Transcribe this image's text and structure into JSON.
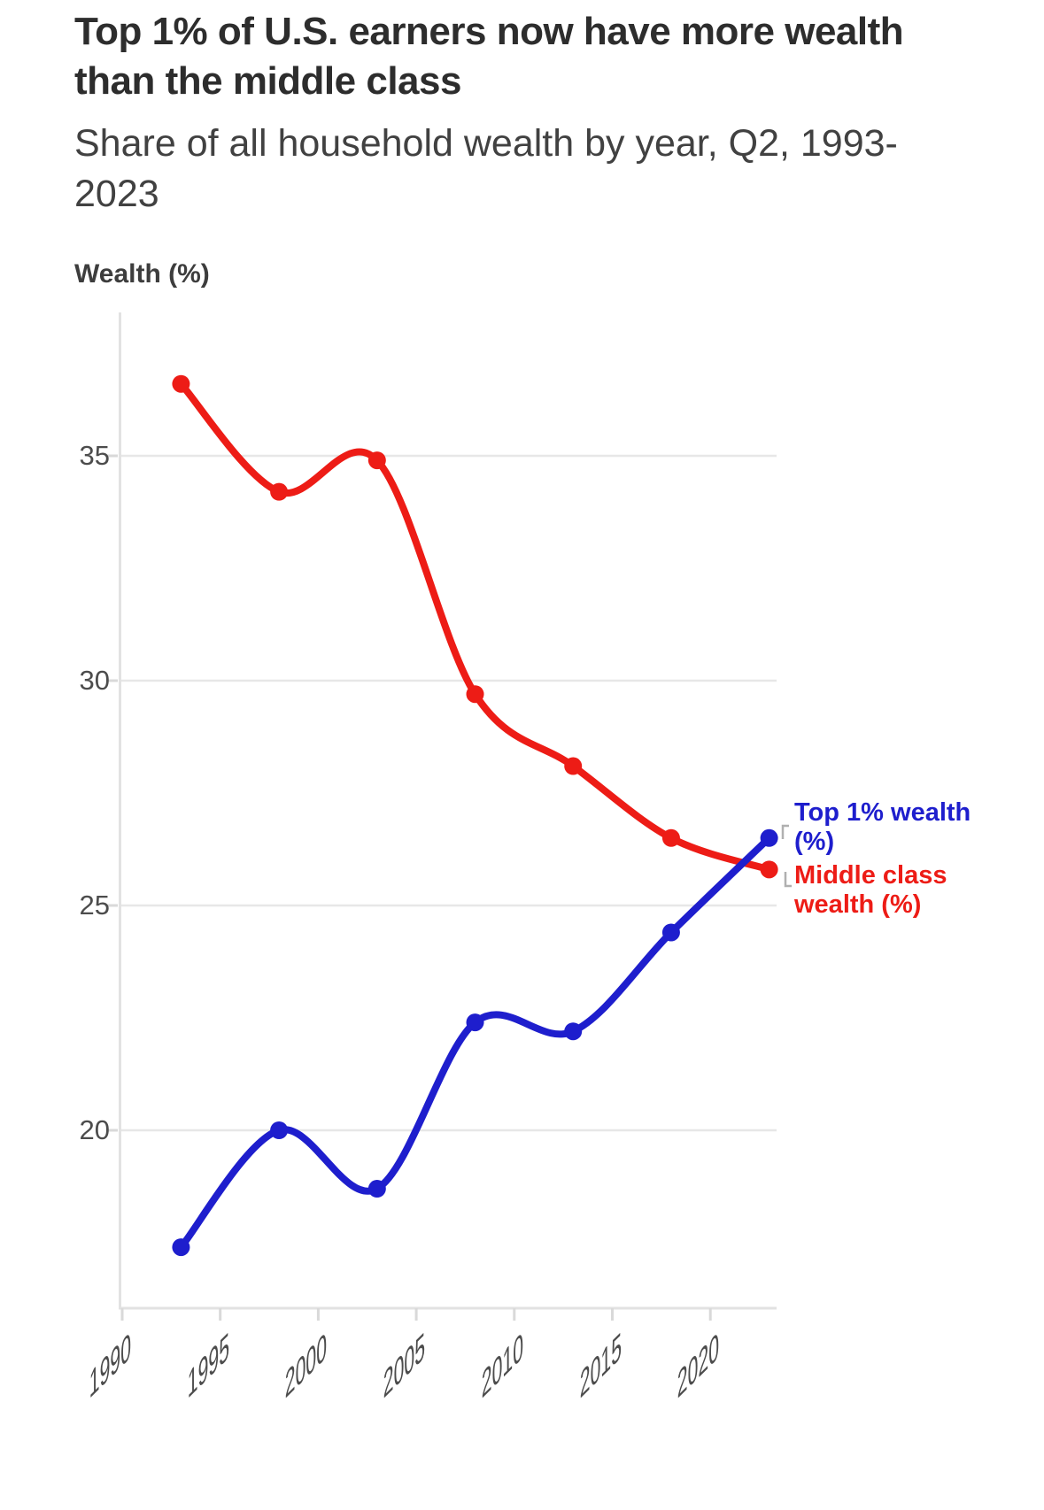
{
  "header": {
    "title_lines": [
      "Top 1% of U.S. earners now have more wealth",
      "than the middle class"
    ],
    "subtitle_lines": [
      "Share of all household wealth by year, Q2, 1993-",
      "2023"
    ]
  },
  "chart": {
    "axis_title": "Wealth (%)"
  },
  "chart_data": {
    "type": "line",
    "title": "Top 1% of U.S. earners now have more wealth than the middle class",
    "subtitle": "Share of all household wealth by year, Q2, 1993-2023",
    "ylabel": "Wealth (%)",
    "x": [
      1993,
      1998,
      2003,
      2008,
      2013,
      2018,
      2023
    ],
    "series": [
      {
        "name": "Top 1% wealth (%)",
        "label_lines": [
          "Top 1% wealth",
          "(%)"
        ],
        "color": "#1e1ecd",
        "values": [
          17.4,
          20.0,
          18.7,
          22.4,
          22.2,
          24.4,
          26.5
        ]
      },
      {
        "name": "Middle class wealth (%)",
        "label_lines": [
          "Middle class",
          "wealth (%)"
        ],
        "color": "#ed1c16",
        "values": [
          36.6,
          34.2,
          34.9,
          29.7,
          28.1,
          26.5,
          25.8
        ]
      }
    ],
    "x_ticks": [
      1990,
      1995,
      2000,
      2005,
      2010,
      2015,
      2020
    ],
    "y_ticks": [
      35,
      30,
      25,
      20
    ],
    "xlim": [
      1989.9,
      2023.4
    ],
    "ylim": [
      16.0,
      38.2
    ],
    "grid": "horizontal",
    "legend_position": "right-edge-labels",
    "marker": "circle",
    "smooth": true
  },
  "colors": {
    "top1_blue": "#1e1ecd",
    "middle_red": "#ed1c16",
    "gridline": "#e7e7e7",
    "axis_line": "#e2e2e2",
    "tick_stub": "#d9d9d9",
    "connector": "#b0b0b0",
    "title_text": "#2d2d2d",
    "tick_text": "#4c4c4c"
  }
}
